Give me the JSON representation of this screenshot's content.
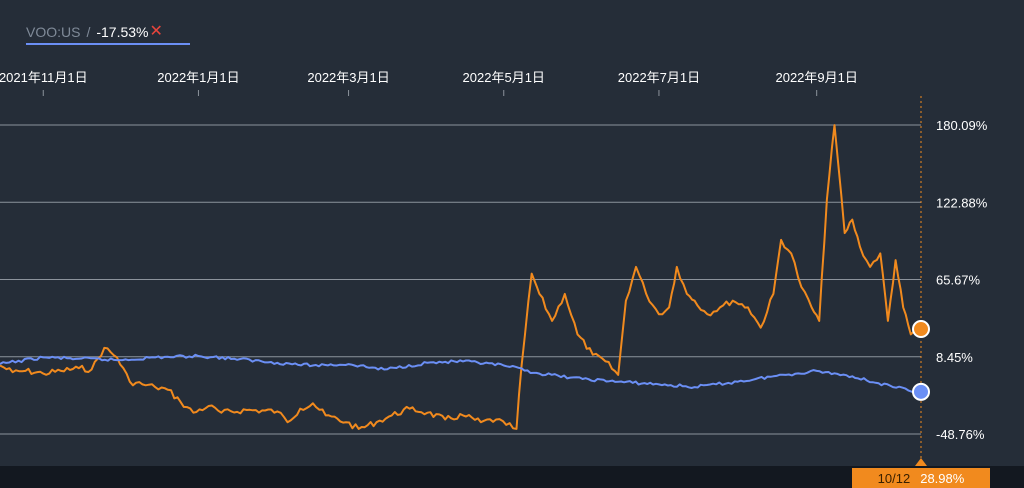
{
  "legend": {
    "ticker": "VOO:US",
    "separator": "/",
    "change": "-17.53%",
    "close_icon": "close-icon",
    "underline_color": "#6b8ff5"
  },
  "colors": {
    "background": "#252d38",
    "grid": "#8c939c",
    "orange_series": "#f18a1e",
    "blue_series": "#6b8ff5"
  },
  "crosshair": {
    "date": "10/12",
    "value": "28.98%"
  },
  "chart_data": {
    "type": "line",
    "x_tick_labels": [
      "2021年11月1日",
      "2022年1月1日",
      "2022年3月1日",
      "2022年5月1日",
      "2022年7月1日",
      "2022年9月1日"
    ],
    "y_tick_labels": [
      "180.09%",
      "122.88%",
      "65.67%",
      "8.45%",
      "-48.76%"
    ],
    "ylim": [
      -48.76,
      180.09
    ],
    "xlim": [
      "2021-10-15",
      "2022-10-12"
    ],
    "grid": true,
    "y_axis_position": "right",
    "series": [
      {
        "color": "#f18a1e",
        "points": [
          [
            "2021-10-15",
            2
          ],
          [
            "2021-10-20",
            -3
          ],
          [
            "2021-10-25",
            -2
          ],
          [
            "2021-11-01",
            -4
          ],
          [
            "2021-11-08",
            -2
          ],
          [
            "2021-11-15",
            0
          ],
          [
            "2021-11-20",
            -1
          ],
          [
            "2021-11-25",
            15
          ],
          [
            "2021-11-30",
            8
          ],
          [
            "2021-12-05",
            -10
          ],
          [
            "2021-12-10",
            -12
          ],
          [
            "2021-12-15",
            -14
          ],
          [
            "2021-12-20",
            -16
          ],
          [
            "2021-12-25",
            -25
          ],
          [
            "2021-12-30",
            -33
          ],
          [
            "2022-01-05",
            -28
          ],
          [
            "2022-01-10",
            -33
          ],
          [
            "2022-01-20",
            -31
          ],
          [
            "2022-02-01",
            -32
          ],
          [
            "2022-02-05",
            -40
          ],
          [
            "2022-02-10",
            -30
          ],
          [
            "2022-02-15",
            -26
          ],
          [
            "2022-02-20",
            -35
          ],
          [
            "2022-02-28",
            -40
          ],
          [
            "2022-03-05",
            -45
          ],
          [
            "2022-03-12",
            -40
          ],
          [
            "2022-03-18",
            -35
          ],
          [
            "2022-03-25",
            -30
          ],
          [
            "2022-04-01",
            -33
          ],
          [
            "2022-04-08",
            -38
          ],
          [
            "2022-04-15",
            -35
          ],
          [
            "2022-04-22",
            -40
          ],
          [
            "2022-04-28",
            -38
          ],
          [
            "2022-05-02",
            -42
          ],
          [
            "2022-05-06",
            -45
          ],
          [
            "2022-05-08",
            2
          ],
          [
            "2022-05-12",
            70
          ],
          [
            "2022-05-15",
            55
          ],
          [
            "2022-05-20",
            35
          ],
          [
            "2022-05-25",
            55
          ],
          [
            "2022-05-30",
            25
          ],
          [
            "2022-06-05",
            10
          ],
          [
            "2022-06-10",
            5
          ],
          [
            "2022-06-15",
            -5
          ],
          [
            "2022-06-18",
            50
          ],
          [
            "2022-06-22",
            75
          ],
          [
            "2022-06-26",
            55
          ],
          [
            "2022-07-01",
            40
          ],
          [
            "2022-07-05",
            45
          ],
          [
            "2022-07-08",
            75
          ],
          [
            "2022-07-12",
            55
          ],
          [
            "2022-07-15",
            50
          ],
          [
            "2022-07-20",
            40
          ],
          [
            "2022-07-25",
            45
          ],
          [
            "2022-07-30",
            50
          ],
          [
            "2022-08-05",
            45
          ],
          [
            "2022-08-10",
            30
          ],
          [
            "2022-08-15",
            55
          ],
          [
            "2022-08-18",
            95
          ],
          [
            "2022-08-22",
            85
          ],
          [
            "2022-08-26",
            60
          ],
          [
            "2022-08-30",
            45
          ],
          [
            "2022-09-02",
            35
          ],
          [
            "2022-09-05",
            125
          ],
          [
            "2022-09-08",
            180
          ],
          [
            "2022-09-12",
            100
          ],
          [
            "2022-09-15",
            110
          ],
          [
            "2022-09-18",
            90
          ],
          [
            "2022-09-22",
            75
          ],
          [
            "2022-09-26",
            85
          ],
          [
            "2022-09-29",
            35
          ],
          [
            "2022-10-02",
            80
          ],
          [
            "2022-10-05",
            45
          ],
          [
            "2022-10-08",
            25
          ],
          [
            "2022-10-12",
            28.98
          ]
        ]
      },
      {
        "color": "#6b8ff5",
        "points": [
          [
            "2021-10-15",
            3
          ],
          [
            "2021-11-01",
            8
          ],
          [
            "2021-11-15",
            7
          ],
          [
            "2021-12-01",
            6
          ],
          [
            "2021-12-15",
            8
          ],
          [
            "2022-01-01",
            9
          ],
          [
            "2022-01-15",
            7
          ],
          [
            "2022-02-01",
            4
          ],
          [
            "2022-02-15",
            2
          ],
          [
            "2022-03-01",
            3
          ],
          [
            "2022-03-15",
            -1
          ],
          [
            "2022-04-01",
            4
          ],
          [
            "2022-04-15",
            5
          ],
          [
            "2022-05-01",
            2
          ],
          [
            "2022-05-15",
            -4
          ],
          [
            "2022-06-01",
            -8
          ],
          [
            "2022-06-15",
            -10
          ],
          [
            "2022-07-01",
            -12
          ],
          [
            "2022-07-15",
            -14
          ],
          [
            "2022-08-01",
            -10
          ],
          [
            "2022-08-15",
            -6
          ],
          [
            "2022-09-01",
            -2
          ],
          [
            "2022-09-15",
            -6
          ],
          [
            "2022-10-01",
            -14
          ],
          [
            "2022-10-12",
            -17.53
          ]
        ]
      }
    ]
  }
}
